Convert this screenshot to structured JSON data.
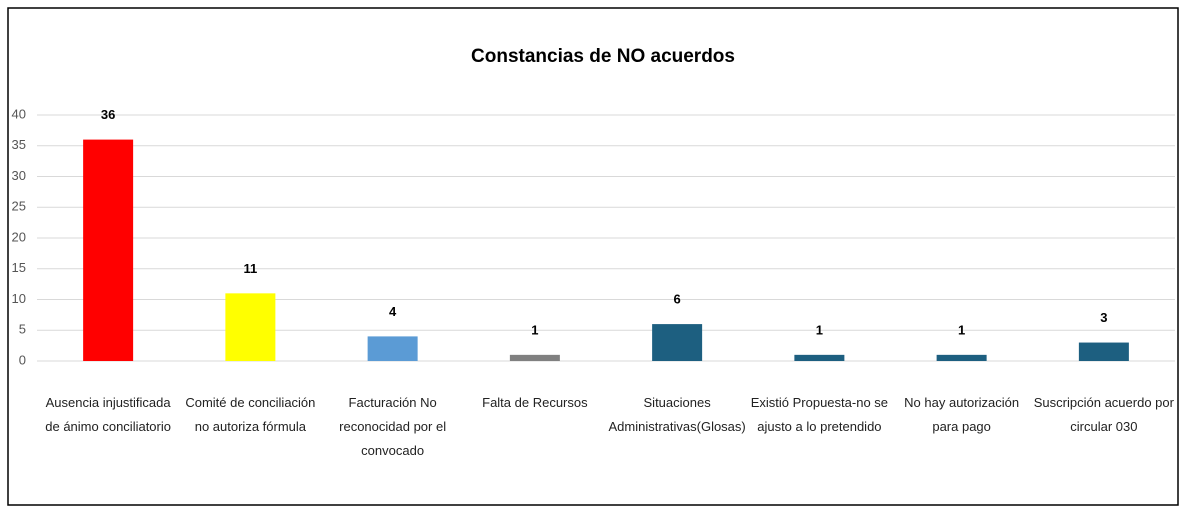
{
  "chart_data": {
    "type": "bar",
    "title": "Constancias de NO acuerdos",
    "categories": [
      "Ausencia injustificada de ánimo conciliatorio",
      "Comité de conciliación no autoriza fórmula",
      "Facturación No reconocidad por el convocado",
      "Falta de Recursos",
      "Situaciones Administrativas(Glosas)",
      "Existió Propuesta-no se ajusto a lo pretendido",
      "No hay autorización para pago",
      "Suscripción acuerdo por circular 030"
    ],
    "values": [
      36,
      11,
      4,
      1,
      6,
      1,
      1,
      3
    ],
    "colors": [
      "#ff0000",
      "#ffff00",
      "#5b9bd5",
      "#808080",
      "#1d5f80",
      "#1d5f80",
      "#1d5f80",
      "#1d5f80"
    ],
    "ylim": [
      0,
      40
    ],
    "yticks": [
      0,
      5,
      10,
      15,
      20,
      25,
      30,
      35,
      40
    ],
    "grid": true
  }
}
